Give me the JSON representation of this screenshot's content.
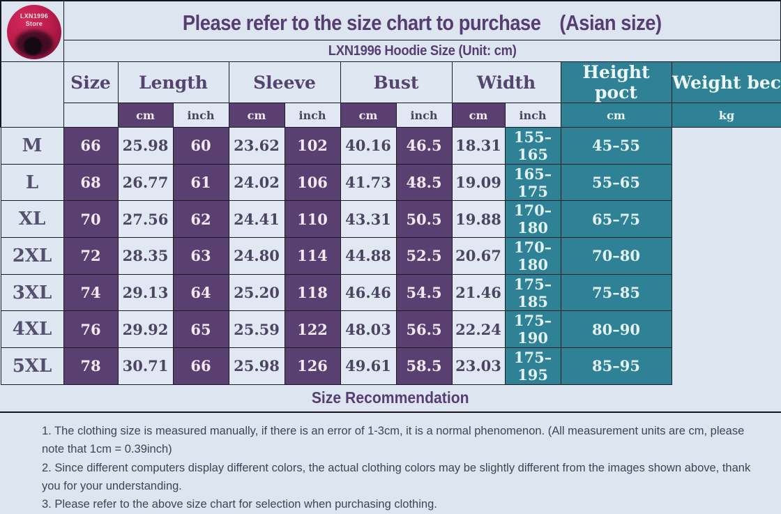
{
  "logo": {
    "line1": "LXN1996",
    "line2": "Store"
  },
  "header": {
    "title": "Please refer to the size chart to purchase　(Asian size)",
    "subtitle": "LXN1996 Hoodie Size (Unit: cm)"
  },
  "table": {
    "size_col_header": "Size",
    "unit_cm": "cm",
    "unit_inch": "inch",
    "groups": [
      {
        "label": "Length"
      },
      {
        "label": "Sleeve"
      },
      {
        "label": "Bust"
      },
      {
        "label": "Width"
      }
    ],
    "teal_cols": [
      {
        "label": "Height poct",
        "unit": "cm"
      },
      {
        "label": "Weight bec",
        "unit": "kg"
      }
    ],
    "rows": [
      {
        "size": "M",
        "cells": [
          "66",
          "25.98",
          "60",
          "23.62",
          "102",
          "40.16",
          "46.5",
          "18.31",
          "155–165",
          "45–55"
        ]
      },
      {
        "size": "L",
        "cells": [
          "68",
          "26.77",
          "61",
          "24.02",
          "106",
          "41.73",
          "48.5",
          "19.09",
          "165–175",
          "55–65"
        ]
      },
      {
        "size": "XL",
        "cells": [
          "70",
          "27.56",
          "62",
          "24.41",
          "110",
          "43.31",
          "50.5",
          "19.88",
          "170–180",
          "65–75"
        ]
      },
      {
        "size": "2XL",
        "cells": [
          "72",
          "28.35",
          "63",
          "24.80",
          "114",
          "44.88",
          "52.5",
          "20.67",
          "170–180",
          "70–80"
        ]
      },
      {
        "size": "3XL",
        "cells": [
          "74",
          "29.13",
          "64",
          "25.20",
          "118",
          "46.46",
          "54.5",
          "21.46",
          "175–185",
          "75–85"
        ]
      },
      {
        "size": "4XL",
        "cells": [
          "76",
          "29.92",
          "65",
          "25.59",
          "122",
          "48.03",
          "56.5",
          "22.24",
          "175–190",
          "80–90"
        ]
      },
      {
        "size": "5XL",
        "cells": [
          "78",
          "30.71",
          "66",
          "25.98",
          "126",
          "49.61",
          "58.5",
          "23.03",
          "175–195",
          "85–95"
        ]
      }
    ]
  },
  "recommendation": {
    "title": "Size Recommendation"
  },
  "notes": [
    "1. The clothing size is measured manually, if there is an error of 1-3cm, it is a normal phenomenon. (All measurement units are cm, please note that 1cm = 0.39inch)",
    "2. Since different computers display different colors, the actual clothing colors may be slightly different from the images shown above, thank you for your understanding.",
    "3. Please refer to the above size chart for selection when purchasing clothing."
  ],
  "colors": {
    "background": "#dde5f1",
    "purple_cell": "#594070",
    "teal_cell": "#2f8196",
    "title_text": "#563d72",
    "logo_red": "#bd1d4c",
    "border": "#1a1a22"
  }
}
